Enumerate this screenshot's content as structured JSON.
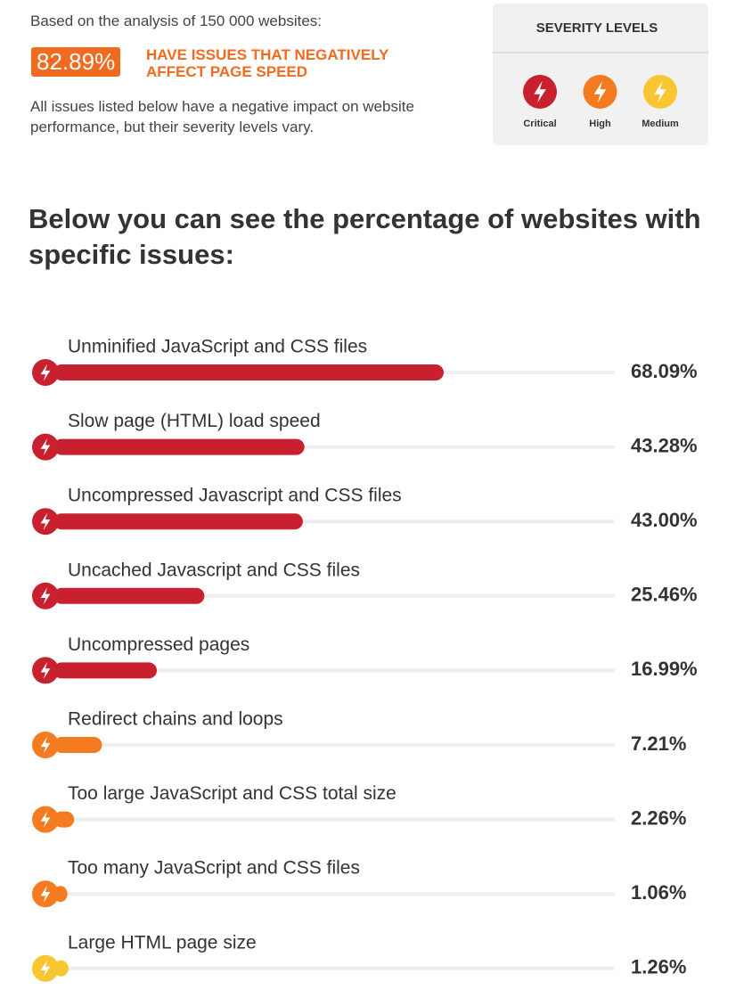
{
  "header": {
    "intro": "Based on the analysis of 150 000 websites:",
    "badge": "82.89%",
    "headline": "HAVE ISSUES THAT NEGATIVELY AFFECT PAGE SPEED",
    "note": "All issues listed below have a negative impact on website performance, but their severity levels vary."
  },
  "severity": {
    "title": "SEVERITY LEVELS",
    "levels": [
      {
        "name": "Critical",
        "color": "#c8202f"
      },
      {
        "name": "High",
        "color": "#f47b20"
      },
      {
        "name": "Medium",
        "color": "#f9c531"
      }
    ]
  },
  "chart_data": {
    "type": "bar",
    "orientation": "horizontal",
    "title": "Below you can see the percentage of websites with specific issues:",
    "categories": [
      "Unminified JavaScript and CSS files",
      "Slow page (HTML) load speed",
      "Uncompressed Javascript and CSS files",
      "Uncached Javascript and CSS files",
      "Uncompressed pages",
      "Redirect chains and loops",
      "Too large JavaScript and CSS total size",
      "Too many JavaScript and CSS files",
      "Large HTML page size"
    ],
    "values": [
      68.09,
      43.28,
      43.0,
      25.46,
      16.99,
      7.21,
      2.26,
      1.06,
      1.26
    ],
    "value_labels": [
      "68.09%",
      "43.28%",
      "43.00%",
      "25.46%",
      "16.99%",
      "7.21%",
      "2.26%",
      "1.06%",
      "1.26%"
    ],
    "colors": [
      "#c8202f",
      "#c8202f",
      "#c8202f",
      "#c8202f",
      "#c8202f",
      "#f47b20",
      "#f47b20",
      "#f47b20",
      "#f9c531"
    ],
    "xlim": [
      0,
      100
    ]
  }
}
